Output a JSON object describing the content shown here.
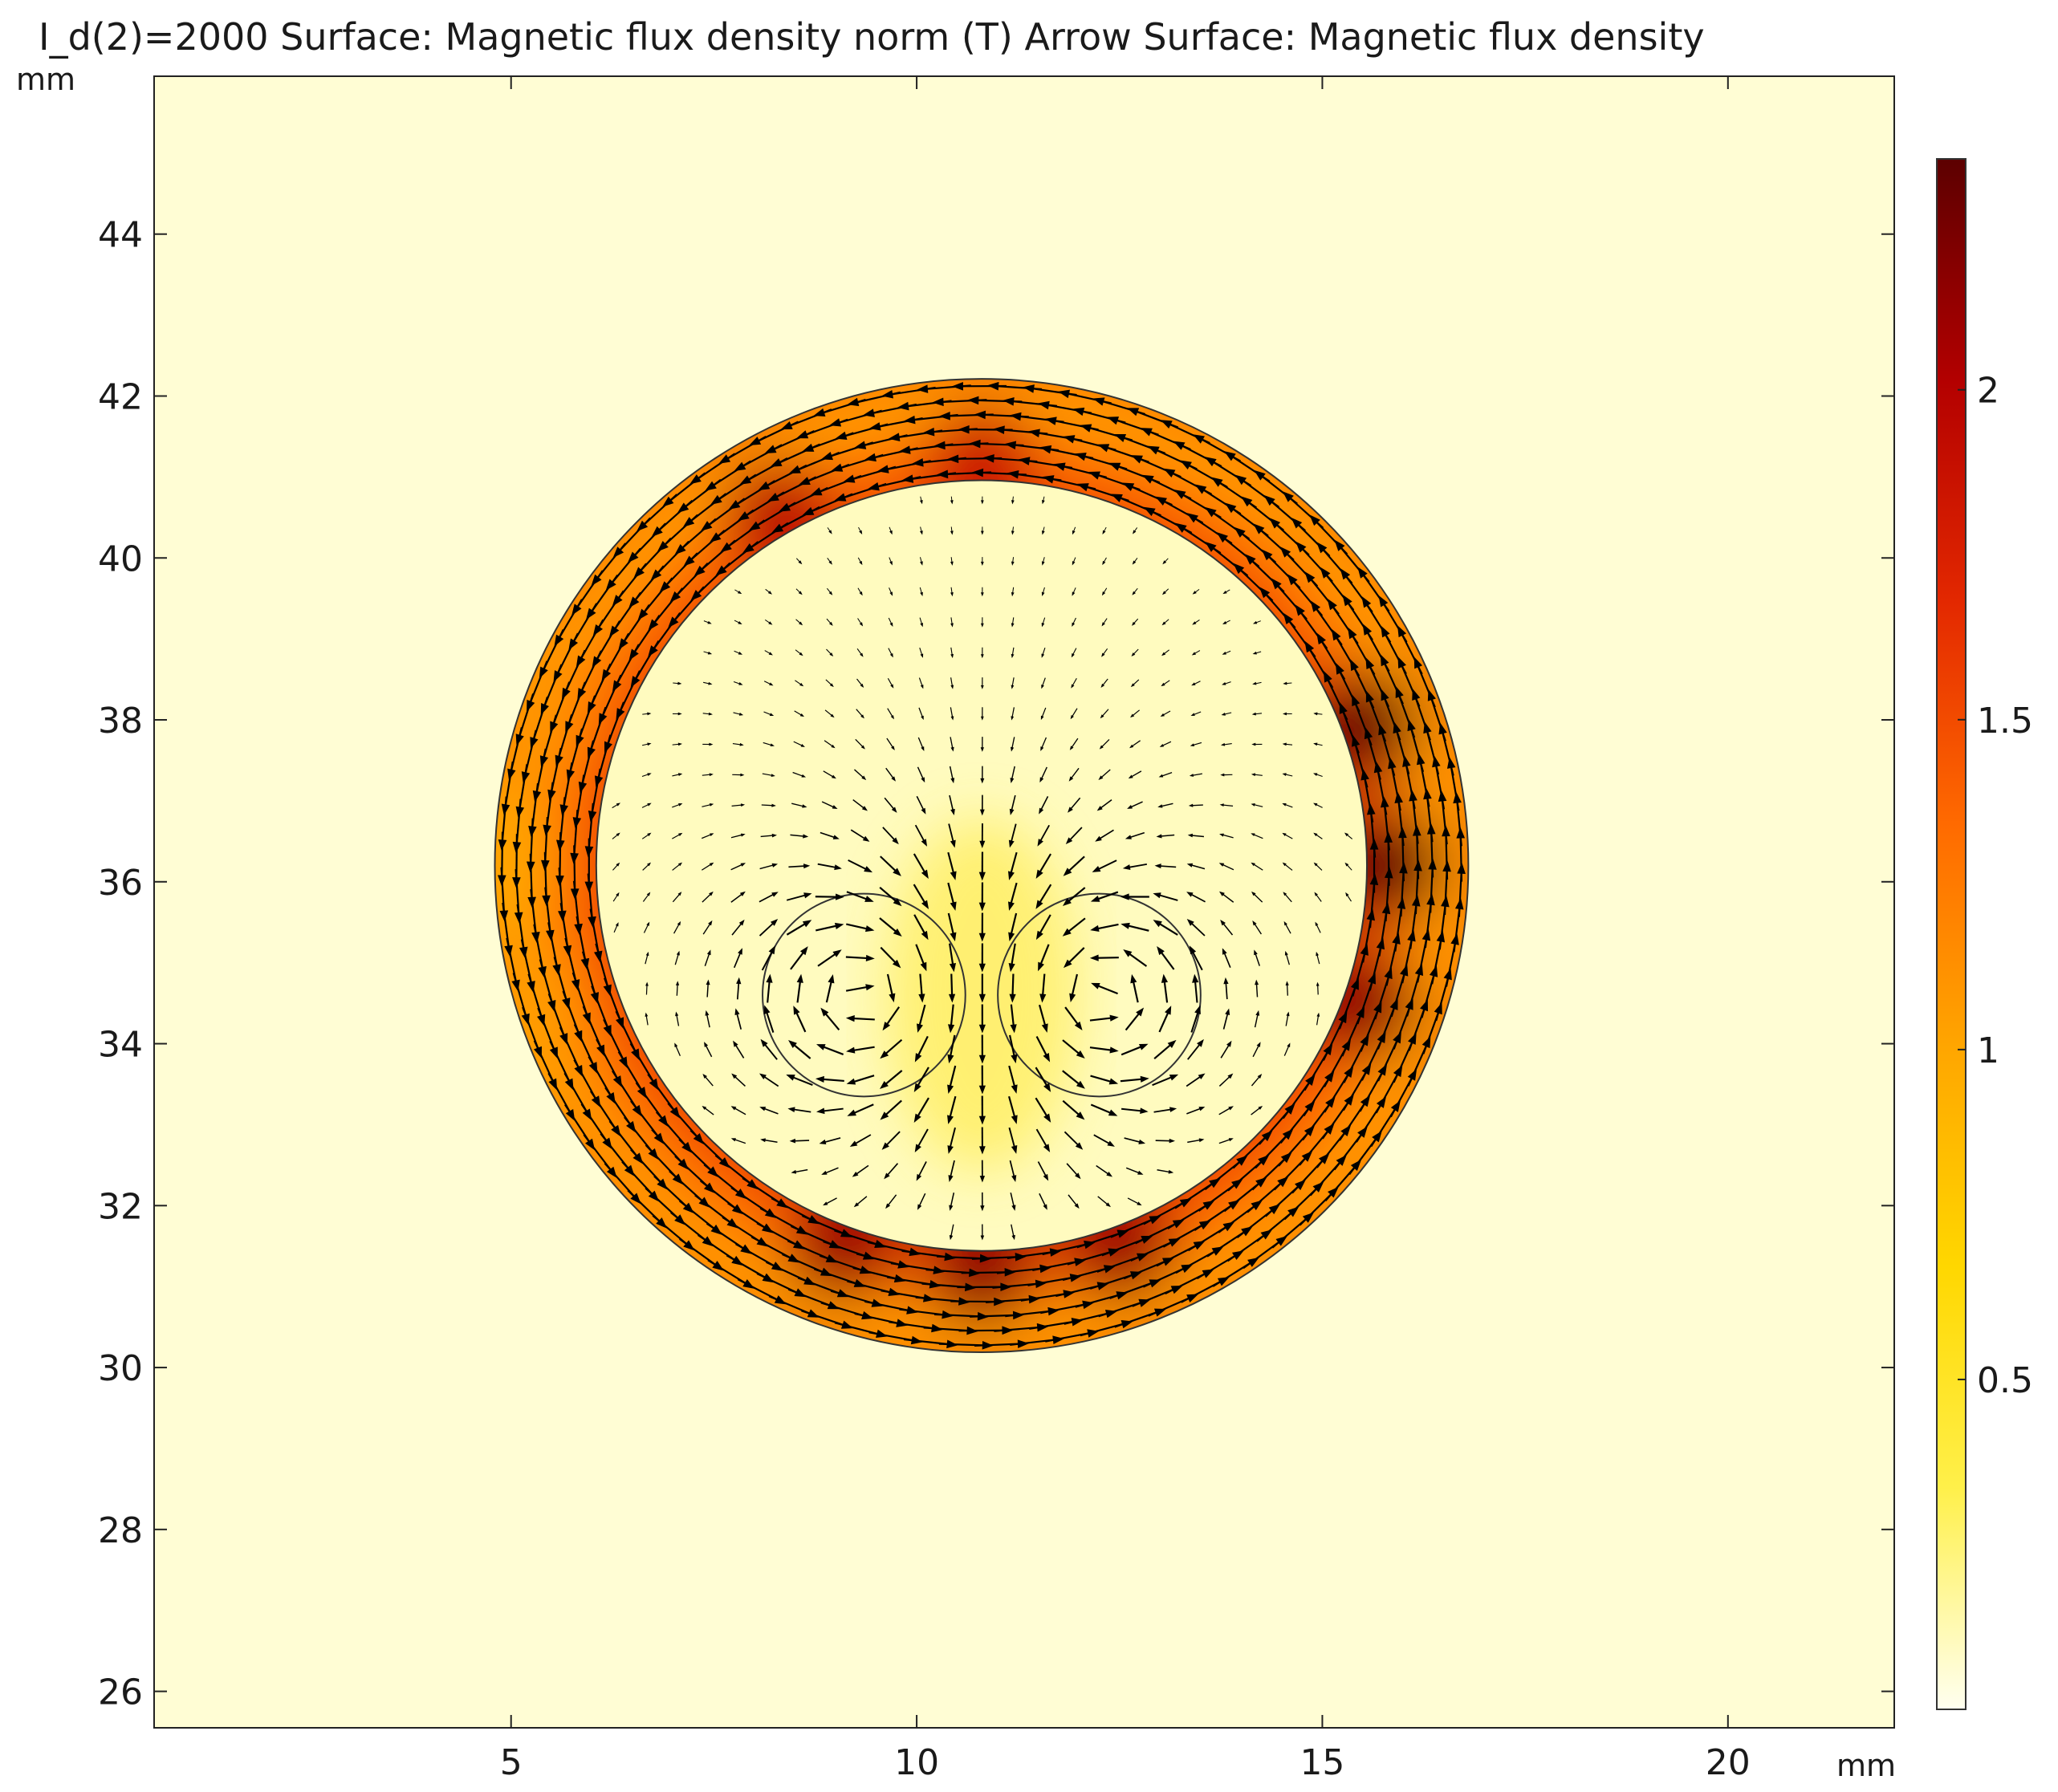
{
  "title": "I_d(2)=2000  Surface: Magnetic flux density norm (T)  Arrow Surface: Magnetic flux density",
  "chart_data": {
    "type": "heatmap",
    "title": "I_d(2)=2000  Surface: Magnetic flux density norm (T)  Arrow Surface: Magnetic flux density",
    "xlabel": "mm",
    "ylabel": "mm",
    "xlim": [
      0.6,
      22.05
    ],
    "ylim": [
      25.55,
      45.95
    ],
    "xticks": [
      5,
      10,
      15,
      20
    ],
    "yticks": [
      26,
      28,
      30,
      32,
      34,
      36,
      38,
      40,
      42,
      44
    ],
    "grid": false,
    "colorbar": {
      "label": "Magnetic flux density norm (T)",
      "range": [
        0.0,
        2.35
      ],
      "ticks": [
        0.5,
        1,
        1.5,
        2
      ],
      "colormap": [
        "#fffff0",
        "#fff04a",
        "#ffd700",
        "#ffa500",
        "#ff6a00",
        "#e32800",
        "#b30000",
        "#5c0000"
      ]
    },
    "geometry": {
      "outer_circle": {
        "cx": 10.8,
        "cy": 36.2,
        "r": 6.0,
        "unit": "mm"
      },
      "inner_circle": {
        "cx": 10.8,
        "cy": 36.2,
        "r": 4.75,
        "unit": "mm"
      },
      "conductors": [
        {
          "cx": 9.35,
          "cy": 34.6,
          "r": 1.25,
          "unit": "mm"
        },
        {
          "cx": 12.25,
          "cy": 34.6,
          "r": 1.25,
          "unit": "mm"
        }
      ]
    },
    "field_values": {
      "outer_ring_min": 1.0,
      "outer_ring_peak": 2.3,
      "inner_region_typical": 0.1
    },
    "colors": {
      "background": "#fffdd4",
      "arrow": "#000000"
    }
  }
}
